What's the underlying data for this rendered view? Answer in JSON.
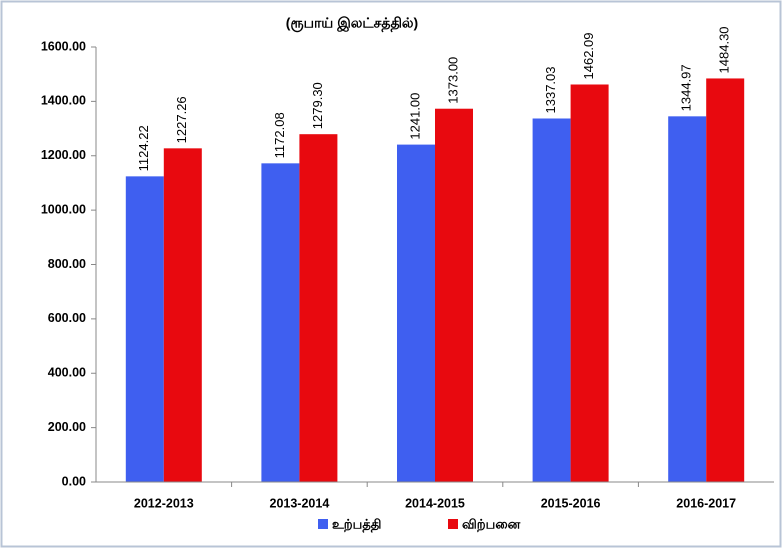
{
  "chart_data": {
    "type": "bar",
    "title": "(ரூபாய் இலட்சத்தில்)",
    "categories": [
      "2012-2013",
      "2013-2014",
      "2014-2015",
      "2015-2016",
      "2016-2017"
    ],
    "series": [
      {
        "name": "உற்பத்தி",
        "color": "#3f5ff0",
        "values": [
          1124.22,
          1172.08,
          1241.0,
          1337.03,
          1344.97
        ],
        "value_labels": [
          "1124.22",
          "1172.08",
          "1241.00",
          "1337.03",
          "1344.97"
        ]
      },
      {
        "name": "விற்பனை",
        "color": "#e8090f",
        "values": [
          1227.26,
          1279.3,
          1373.0,
          1462.09,
          1484.3
        ],
        "value_labels": [
          "1227.26",
          "1279.30",
          "1373.00",
          "1462.09",
          "1484.30"
        ]
      }
    ],
    "ylim": [
      0,
      1600
    ],
    "yticks": [
      {
        "value": 0,
        "label": "0.00"
      },
      {
        "value": 200,
        "label": "200.00"
      },
      {
        "value": 400,
        "label": "400.00"
      },
      {
        "value": 600,
        "label": "600.00"
      },
      {
        "value": 800,
        "label": "800.00"
      },
      {
        "value": 1000,
        "label": "1000.00"
      },
      {
        "value": 1200,
        "label": "1200.00"
      },
      {
        "value": 1400,
        "label": "1400.00"
      },
      {
        "value": 1600,
        "label": "1600.00"
      }
    ],
    "grid": false,
    "legend": "bottom"
  }
}
